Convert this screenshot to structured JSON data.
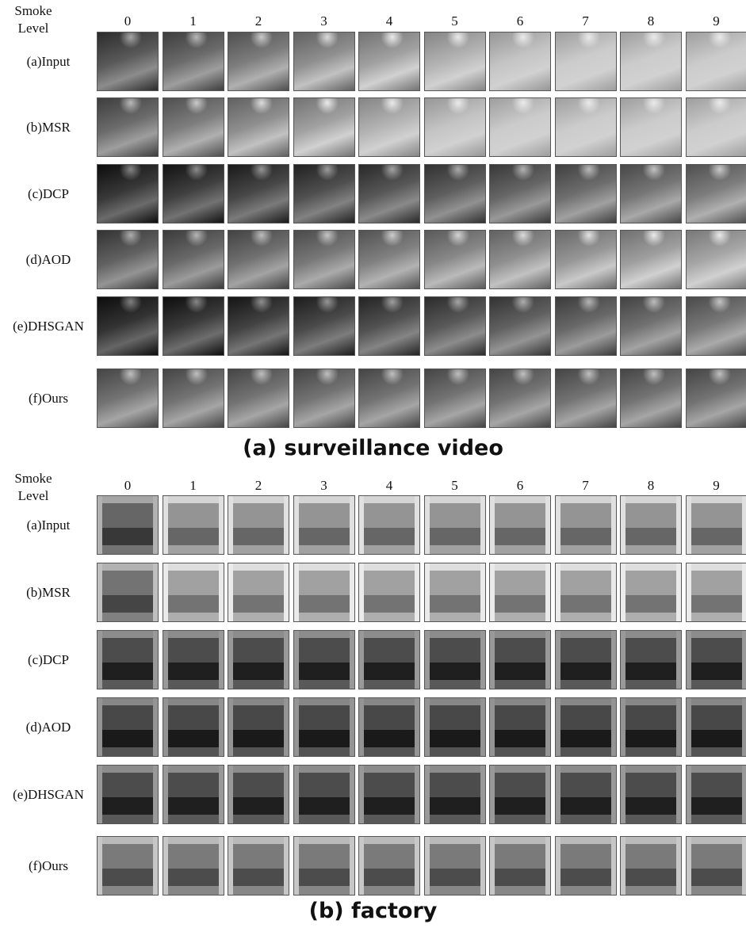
{
  "panels": [
    {
      "corner_label": [
        "Smoke",
        "Level"
      ],
      "columns": [
        "0",
        "1",
        "2",
        "3",
        "4",
        "5",
        "6",
        "7",
        "8",
        "9"
      ],
      "rows": [
        "(a)Input",
        "(b)MSR",
        "(c)DCP",
        "(d)AOD",
        "(e)DHSGAN",
        "(f)Ours"
      ],
      "caption": "(a) surveillance video"
    },
    {
      "corner_label": [
        "Smoke",
        "Level"
      ],
      "columns": [
        "0",
        "1",
        "2",
        "3",
        "4",
        "5",
        "6",
        "7",
        "8",
        "9"
      ],
      "rows": [
        "(a)Input",
        "(b)MSR",
        "(c)DCP",
        "(d)AOD",
        "(e)DHSGAN",
        "(f)Ours"
      ],
      "caption": "(b) factory"
    }
  ]
}
